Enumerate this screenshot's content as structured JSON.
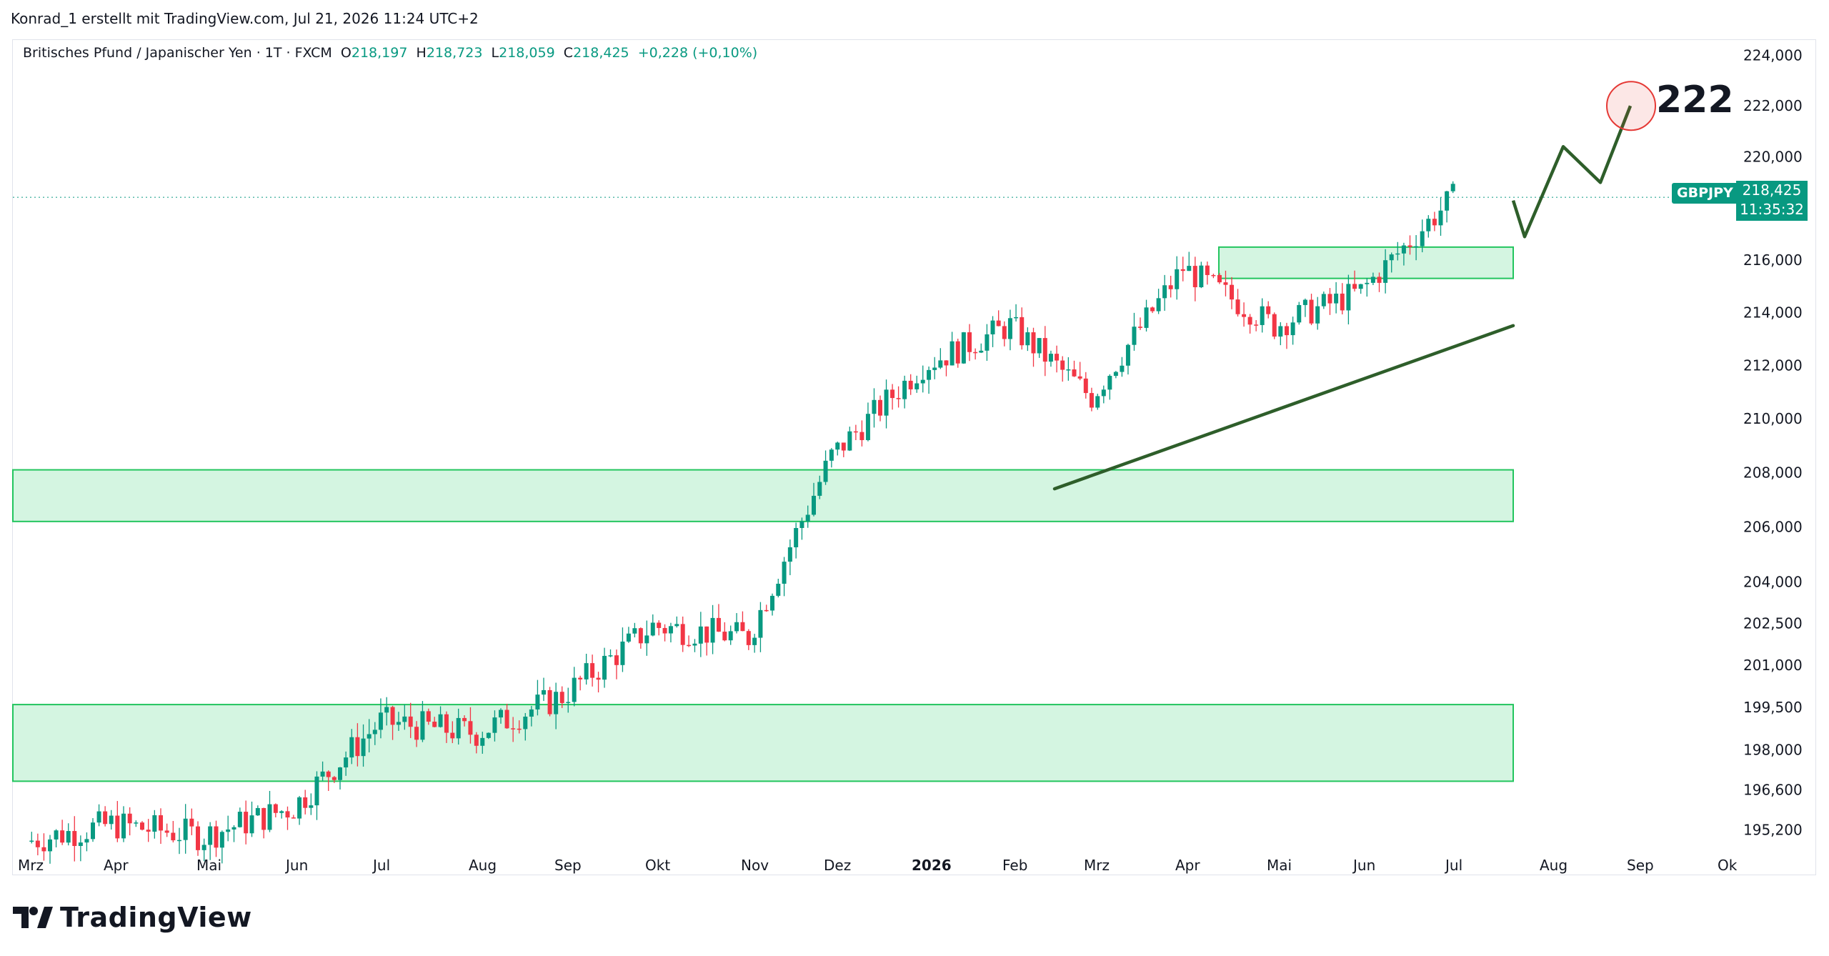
{
  "header": {
    "author_line": "Konrad_1 erstellt mit TradingView.com, Jul 21, 2026 11:24 UTC+2"
  },
  "symbol": {
    "name": "Britisches Pfund / Japanischer Yen · 1T · FXCM",
    "open_label": "O",
    "open": "218,197",
    "high_label": "H",
    "high": "218,723",
    "low_label": "L",
    "low": "218,059",
    "close_label": "C",
    "close": "218,425",
    "change": "+0,228 (+0,10%)"
  },
  "price_tag": {
    "ticker": "GBPJPY",
    "price": "218,425",
    "countdown": "11:35:32"
  },
  "annotation": {
    "target_label": "222"
  },
  "colors": {
    "up": "#089981",
    "down": "#f23645",
    "zone_fill": "#d4f5e1",
    "zone_border": "#22c55e",
    "trend": "#2e5e2a",
    "target_circle": "#e53935"
  },
  "brand": {
    "name": "TradingView"
  },
  "chart_data": {
    "type": "candlestick",
    "y_scale": "log",
    "ylim": [
      194.5,
      224.5
    ],
    "y_ticks": [
      "224,000",
      "222,000",
      "220,000",
      "218,000",
      "216,000",
      "214,000",
      "212,000",
      "210,000",
      "208,000",
      "206,000",
      "204,000",
      "202,500",
      "201,000",
      "199,500",
      "198,000",
      "196,600",
      "195,200"
    ],
    "x_ticks": [
      "Mrz",
      "Apr",
      "Mai",
      "Jun",
      "Jul",
      "Aug",
      "Sep",
      "Okt",
      "Nov",
      "Dez",
      "2026",
      "Feb",
      "Mrz",
      "Apr",
      "Mai",
      "Jun",
      "Jul",
      "Aug",
      "Sep",
      "Ok"
    ],
    "last_close": 218.425,
    "monthly_path": [
      {
        "month": "Mrz",
        "close": 194.8
      },
      {
        "month": "Apr",
        "close": 195.4
      },
      {
        "month": "Mai",
        "close": 195.0
      },
      {
        "month": "Jun",
        "close": 196.0
      },
      {
        "month": "Jul",
        "close": 199.0
      },
      {
        "month": "Aug",
        "close": 198.6
      },
      {
        "month": "Sep",
        "close": 199.9
      },
      {
        "month": "Okt",
        "close": 202.4
      },
      {
        "month": "Nov",
        "close": 202.0
      },
      {
        "month": "Dez",
        "close": 208.6
      },
      {
        "month": "2026",
        "close": 212.0
      },
      {
        "month": "Feb",
        "close": 213.5
      },
      {
        "month": "Mrz",
        "close": 210.8
      },
      {
        "month": "Apr",
        "close": 215.7
      },
      {
        "month": "Mai",
        "close": 213.5
      },
      {
        "month": "Jun",
        "close": 214.8
      },
      {
        "month": "Jul",
        "close": 218.425
      }
    ],
    "zones": [
      {
        "from": 196.9,
        "to": 199.6
      },
      {
        "from": 206.2,
        "to": 208.1
      },
      {
        "from": 215.3,
        "to": 216.5
      }
    ],
    "trendline": {
      "start": {
        "date": "Feb 2026",
        "price": 207.4
      },
      "end": {
        "date": "Jul 2026",
        "price": 213.5
      }
    },
    "projection": [
      218.3,
      216.9,
      220.4,
      219.0,
      222.0
    ]
  }
}
